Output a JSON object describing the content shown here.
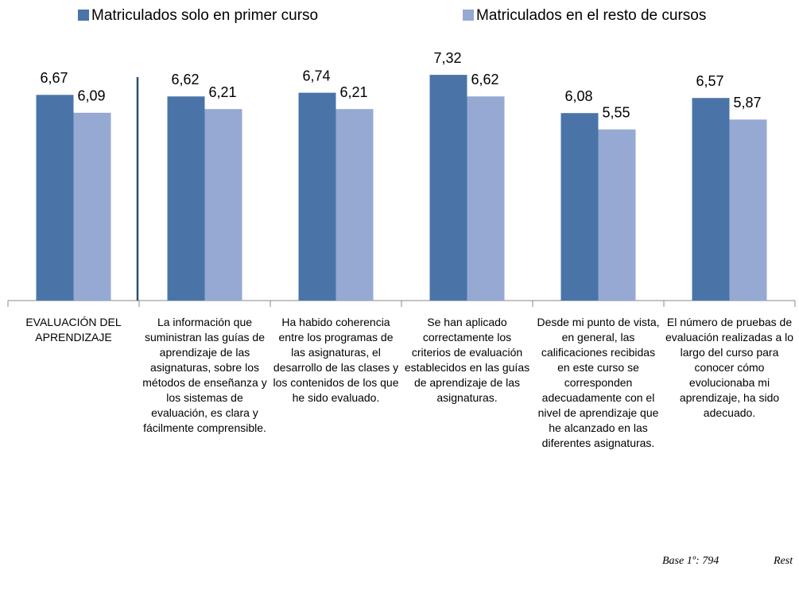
{
  "chart_data": {
    "type": "bar",
    "categories": [
      "EVALUACIÓN DEL APRENDIZAJE",
      "La información que suministran las guías de aprendizaje de las asignaturas, sobre los métodos de enseñanza y los sistemas de evaluación, es clara y fácilmente comprensible.",
      "Ha habido coherencia entre los programas de las asignaturas, el desarrollo de las clases y los contenidos de los que he sido evaluado.",
      "Se han aplicado correctamente los criterios de evaluación establecidos en las guías de aprendizaje de las asignaturas.",
      "Desde mi punto de vista, en general, las calificaciones recibidas en este curso se corresponden adecuadamente con el nivel de aprendizaje que he alcanzado en las diferentes asignaturas.",
      "El número de pruebas de evaluación realizadas a lo largo del curso para conocer cómo evolucionaba mi aprendizaje, ha sido adecuado."
    ],
    "series": [
      {
        "name": "Matriculados solo en primer curso",
        "color": "#4a74a8",
        "values": [
          6.67,
          6.62,
          6.74,
          7.32,
          6.08,
          6.57
        ],
        "value_labels": [
          "6,67",
          "6,62",
          "6,74",
          "7,32",
          "6,08",
          "6,57"
        ]
      },
      {
        "name": "Matriculados en el resto de cursos",
        "color": "#95a9d3",
        "values": [
          6.09,
          6.21,
          6.21,
          6.62,
          5.55,
          5.87
        ],
        "value_labels": [
          "6,09",
          "6,21",
          "6,21",
          "6,62",
          "5,55",
          "5,87"
        ]
      }
    ],
    "ylim": [
      0,
      8.2
    ],
    "annotations": [
      "Base 1º: 794",
      "Rest"
    ]
  }
}
